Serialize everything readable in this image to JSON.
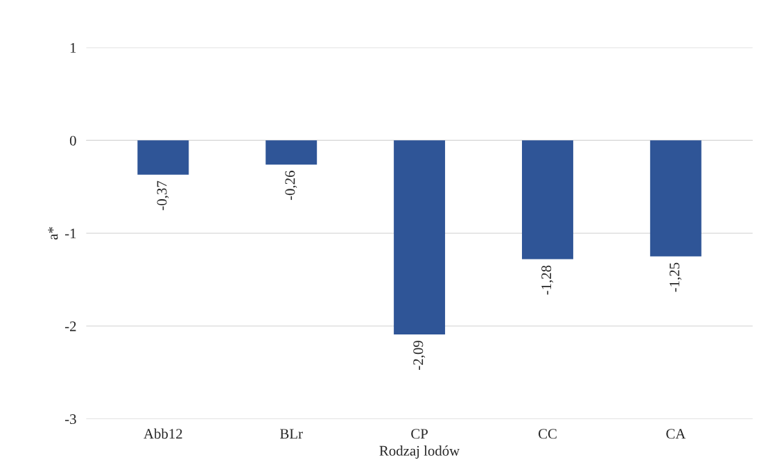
{
  "chart_data": {
    "type": "bar",
    "xlabel": "Rodzaj lodów",
    "ylabel": "a*",
    "categories": [
      "Abb12",
      "BLr",
      "CP",
      "CC",
      "CA"
    ],
    "values": [
      -0.37,
      -0.26,
      -2.09,
      -1.28,
      -1.25
    ],
    "value_labels": [
      "-0,37",
      "-0,26",
      "-2,09",
      "-1,28",
      "-1,25"
    ],
    "color": "#2f5597",
    "ylim": [
      -3,
      1
    ],
    "yticks": [
      -3,
      -2,
      -1,
      0,
      1
    ],
    "grid": "y",
    "legend": false
  }
}
